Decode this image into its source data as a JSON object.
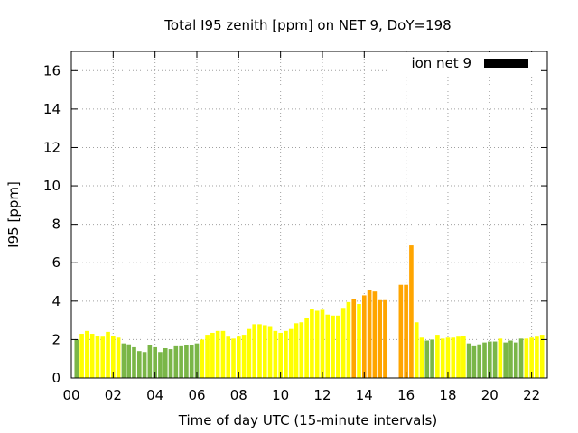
{
  "chart_data": {
    "type": "bar",
    "title": "Total I95 zenith [ppm] on NET 9, DoY=198",
    "xlabel": "Time of day UTC (15-minute intervals)",
    "ylabel": "I95 [ppm]",
    "xlim": [
      0,
      22.75
    ],
    "ylim": [
      0,
      17
    ],
    "x_ticks": [
      {
        "value": 0,
        "label": "00"
      },
      {
        "value": 2,
        "label": "02"
      },
      {
        "value": 4,
        "label": "04"
      },
      {
        "value": 6,
        "label": "06"
      },
      {
        "value": 8,
        "label": "08"
      },
      {
        "value": 10,
        "label": "10"
      },
      {
        "value": 12,
        "label": "12"
      },
      {
        "value": 14,
        "label": "14"
      },
      {
        "value": 16,
        "label": "16"
      },
      {
        "value": 18,
        "label": "18"
      },
      {
        "value": 20,
        "label": "20"
      },
      {
        "value": 22,
        "label": "22"
      }
    ],
    "y_ticks": [
      0,
      2,
      4,
      6,
      8,
      10,
      12,
      14,
      16
    ],
    "grid": true,
    "legend": {
      "label": "ion net 9",
      "color": "#000000",
      "placement": "top-right"
    },
    "colors": {
      "green": "#7ab648",
      "yellow": "#ffff00",
      "orange": "#ffa500"
    },
    "bar_width_hours": 0.2,
    "bars": [
      {
        "x": 0.25,
        "value": 2.0,
        "color": "green"
      },
      {
        "x": 0.5,
        "value": 2.3,
        "color": "yellow"
      },
      {
        "x": 0.75,
        "value": 2.45,
        "color": "yellow"
      },
      {
        "x": 1.0,
        "value": 2.3,
        "color": "yellow"
      },
      {
        "x": 1.25,
        "value": 2.2,
        "color": "yellow"
      },
      {
        "x": 1.5,
        "value": 2.15,
        "color": "yellow"
      },
      {
        "x": 1.75,
        "value": 2.4,
        "color": "yellow"
      },
      {
        "x": 2.0,
        "value": 2.2,
        "color": "yellow"
      },
      {
        "x": 2.25,
        "value": 2.1,
        "color": "yellow"
      },
      {
        "x": 2.5,
        "value": 1.8,
        "color": "green"
      },
      {
        "x": 2.75,
        "value": 1.75,
        "color": "green"
      },
      {
        "x": 3.0,
        "value": 1.6,
        "color": "green"
      },
      {
        "x": 3.25,
        "value": 1.4,
        "color": "green"
      },
      {
        "x": 3.5,
        "value": 1.35,
        "color": "green"
      },
      {
        "x": 3.75,
        "value": 1.7,
        "color": "green"
      },
      {
        "x": 4.0,
        "value": 1.6,
        "color": "green"
      },
      {
        "x": 4.25,
        "value": 1.35,
        "color": "green"
      },
      {
        "x": 4.5,
        "value": 1.55,
        "color": "green"
      },
      {
        "x": 4.75,
        "value": 1.5,
        "color": "green"
      },
      {
        "x": 5.0,
        "value": 1.65,
        "color": "green"
      },
      {
        "x": 5.25,
        "value": 1.65,
        "color": "green"
      },
      {
        "x": 5.5,
        "value": 1.7,
        "color": "green"
      },
      {
        "x": 5.75,
        "value": 1.7,
        "color": "green"
      },
      {
        "x": 6.0,
        "value": 1.8,
        "color": "green"
      },
      {
        "x": 6.25,
        "value": 2.0,
        "color": "yellow"
      },
      {
        "x": 6.5,
        "value": 2.25,
        "color": "yellow"
      },
      {
        "x": 6.75,
        "value": 2.35,
        "color": "yellow"
      },
      {
        "x": 7.0,
        "value": 2.45,
        "color": "yellow"
      },
      {
        "x": 7.25,
        "value": 2.45,
        "color": "yellow"
      },
      {
        "x": 7.5,
        "value": 2.15,
        "color": "yellow"
      },
      {
        "x": 7.75,
        "value": 2.05,
        "color": "yellow"
      },
      {
        "x": 8.0,
        "value": 2.15,
        "color": "yellow"
      },
      {
        "x": 8.25,
        "value": 2.25,
        "color": "yellow"
      },
      {
        "x": 8.5,
        "value": 2.55,
        "color": "yellow"
      },
      {
        "x": 8.75,
        "value": 2.8,
        "color": "yellow"
      },
      {
        "x": 9.0,
        "value": 2.8,
        "color": "yellow"
      },
      {
        "x": 9.25,
        "value": 2.75,
        "color": "yellow"
      },
      {
        "x": 9.5,
        "value": 2.7,
        "color": "yellow"
      },
      {
        "x": 9.75,
        "value": 2.45,
        "color": "yellow"
      },
      {
        "x": 10.0,
        "value": 2.35,
        "color": "yellow"
      },
      {
        "x": 10.25,
        "value": 2.45,
        "color": "yellow"
      },
      {
        "x": 10.5,
        "value": 2.55,
        "color": "yellow"
      },
      {
        "x": 10.75,
        "value": 2.85,
        "color": "yellow"
      },
      {
        "x": 11.0,
        "value": 2.9,
        "color": "yellow"
      },
      {
        "x": 11.25,
        "value": 3.1,
        "color": "yellow"
      },
      {
        "x": 11.5,
        "value": 3.6,
        "color": "yellow"
      },
      {
        "x": 11.75,
        "value": 3.5,
        "color": "yellow"
      },
      {
        "x": 12.0,
        "value": 3.55,
        "color": "yellow"
      },
      {
        "x": 12.25,
        "value": 3.3,
        "color": "yellow"
      },
      {
        "x": 12.5,
        "value": 3.25,
        "color": "yellow"
      },
      {
        "x": 12.75,
        "value": 3.25,
        "color": "yellow"
      },
      {
        "x": 13.0,
        "value": 3.65,
        "color": "yellow"
      },
      {
        "x": 13.25,
        "value": 3.95,
        "color": "yellow"
      },
      {
        "x": 13.5,
        "value": 4.1,
        "color": "orange"
      },
      {
        "x": 13.75,
        "value": 3.85,
        "color": "yellow"
      },
      {
        "x": 14.0,
        "value": 4.3,
        "color": "orange"
      },
      {
        "x": 14.25,
        "value": 4.6,
        "color": "orange"
      },
      {
        "x": 14.5,
        "value": 4.5,
        "color": "orange"
      },
      {
        "x": 14.75,
        "value": 4.05,
        "color": "orange"
      },
      {
        "x": 15.0,
        "value": 4.05,
        "color": "orange"
      },
      {
        "x": 15.75,
        "value": 4.85,
        "color": "orange"
      },
      {
        "x": 16.0,
        "value": 4.85,
        "color": "orange"
      },
      {
        "x": 16.25,
        "value": 6.9,
        "color": "orange"
      },
      {
        "x": 16.5,
        "value": 2.9,
        "color": "yellow"
      },
      {
        "x": 16.75,
        "value": 2.1,
        "color": "yellow"
      },
      {
        "x": 17.0,
        "value": 1.95,
        "color": "green"
      },
      {
        "x": 17.25,
        "value": 2.0,
        "color": "green"
      },
      {
        "x": 17.5,
        "value": 2.25,
        "color": "yellow"
      },
      {
        "x": 17.75,
        "value": 2.05,
        "color": "yellow"
      },
      {
        "x": 18.0,
        "value": 2.1,
        "color": "yellow"
      },
      {
        "x": 18.25,
        "value": 2.1,
        "color": "yellow"
      },
      {
        "x": 18.5,
        "value": 2.15,
        "color": "yellow"
      },
      {
        "x": 18.75,
        "value": 2.2,
        "color": "yellow"
      },
      {
        "x": 19.0,
        "value": 1.8,
        "color": "green"
      },
      {
        "x": 19.25,
        "value": 1.65,
        "color": "green"
      },
      {
        "x": 19.5,
        "value": 1.75,
        "color": "green"
      },
      {
        "x": 19.75,
        "value": 1.85,
        "color": "green"
      },
      {
        "x": 20.0,
        "value": 1.9,
        "color": "green"
      },
      {
        "x": 20.25,
        "value": 1.9,
        "color": "green"
      },
      {
        "x": 20.5,
        "value": 2.05,
        "color": "yellow"
      },
      {
        "x": 20.75,
        "value": 1.85,
        "color": "green"
      },
      {
        "x": 21.0,
        "value": 1.95,
        "color": "green"
      },
      {
        "x": 21.25,
        "value": 1.85,
        "color": "green"
      },
      {
        "x": 21.5,
        "value": 2.05,
        "color": "green"
      },
      {
        "x": 21.75,
        "value": 2.05,
        "color": "yellow"
      },
      {
        "x": 22.0,
        "value": 2.1,
        "color": "yellow"
      },
      {
        "x": 22.25,
        "value": 2.15,
        "color": "yellow"
      },
      {
        "x": 22.5,
        "value": 2.25,
        "color": "yellow"
      }
    ]
  }
}
